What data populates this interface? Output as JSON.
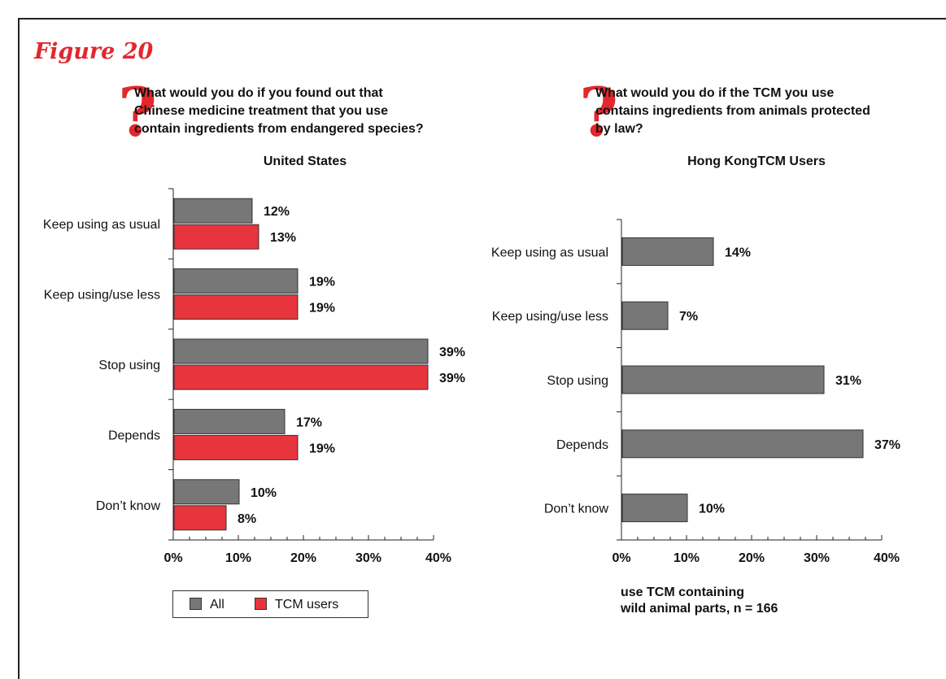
{
  "figure_title": "Figure 20",
  "left_panel": {
    "question_mark": "?",
    "question_lines": [
      "What would you do if you found out that",
      "Chinese medicine treatment that you use",
      "contain ingredients from endangered species?"
    ]
  },
  "right_panel": {
    "question_mark": "?",
    "question_lines": [
      "What would you do if the TCM you use",
      "contains ingredients from animals protected",
      "by law?"
    ],
    "note_lines": [
      "use TCM containing",
      "wild animal parts, n = 166"
    ]
  },
  "legend": {
    "all": "All",
    "tcm": "TCM users"
  },
  "colors": {
    "gray": "#777777",
    "red": "#e8343d",
    "accent": "#e2282d"
  },
  "chart_data": [
    {
      "type": "bar",
      "orientation": "horizontal",
      "title": "United States",
      "categories": [
        "Keep using as usual",
        "Keep using/use less",
        "Stop using",
        "Depends",
        "Don’t know"
      ],
      "series": [
        {
          "name": "All",
          "values": [
            12,
            19,
            39,
            17,
            10
          ],
          "labels": [
            "12%",
            "19%",
            "39%",
            "17%",
            "10%"
          ]
        },
        {
          "name": "TCM users",
          "values": [
            13,
            19,
            39,
            19,
            8
          ],
          "labels": [
            "13%",
            "19%",
            "39%",
            "19%",
            "8%"
          ]
        }
      ],
      "xlim": [
        0,
        40
      ],
      "xticks": [
        "0%",
        "10%",
        "20%",
        "30%",
        "40%"
      ],
      "legend": "bottom"
    },
    {
      "type": "bar",
      "orientation": "horizontal",
      "title": "Hong KongTCM Users",
      "categories": [
        "Keep using as usual",
        "Keep using/use less",
        "Stop using",
        "Depends",
        "Don’t know"
      ],
      "series": [
        {
          "values": [
            14,
            7,
            31,
            37,
            10
          ],
          "labels": [
            "14%",
            "7%",
            "31%",
            "37%",
            "10%"
          ]
        }
      ],
      "xlim": [
        0,
        40
      ],
      "xticks": [
        "0%",
        "10%",
        "20%",
        "30%",
        "40%"
      ]
    }
  ]
}
